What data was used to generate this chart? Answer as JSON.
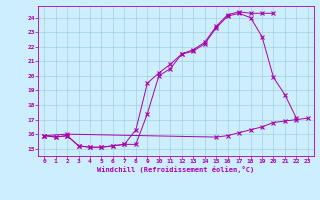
{
  "xlabel": "Windchill (Refroidissement éolien,°C)",
  "bg_color": "#cceeff",
  "line_color": "#aa00aa",
  "grid_color": "#99cccc",
  "xlim": [
    -0.5,
    23.5
  ],
  "ylim": [
    14.5,
    24.8
  ],
  "yticks": [
    15,
    16,
    17,
    18,
    19,
    20,
    21,
    22,
    23,
    24
  ],
  "xticks": [
    0,
    1,
    2,
    3,
    4,
    5,
    6,
    7,
    8,
    9,
    10,
    11,
    12,
    13,
    14,
    15,
    16,
    17,
    18,
    19,
    20,
    21,
    22,
    23
  ],
  "line1_x": [
    0,
    1,
    2,
    3,
    4,
    5,
    6,
    7,
    8,
    9,
    10,
    11,
    12,
    13,
    14,
    15,
    16,
    17,
    18,
    19,
    20,
    21,
    22
  ],
  "line1_y": [
    15.9,
    15.8,
    15.9,
    15.2,
    15.1,
    15.1,
    15.2,
    15.3,
    15.3,
    17.4,
    20.0,
    20.5,
    21.5,
    21.7,
    22.2,
    23.3,
    24.1,
    24.3,
    24.0,
    22.7,
    19.9,
    18.7,
    17.1
  ],
  "line2_x": [
    0,
    1,
    2,
    3,
    4,
    5,
    6,
    7,
    8,
    9,
    10,
    11,
    12,
    13,
    14,
    15,
    16,
    17,
    18,
    19,
    20
  ],
  "line2_y": [
    15.9,
    15.8,
    15.9,
    15.2,
    15.1,
    15.1,
    15.2,
    15.3,
    16.3,
    19.5,
    20.2,
    20.8,
    21.5,
    21.8,
    22.3,
    23.4,
    24.2,
    24.4,
    24.3,
    24.3,
    24.3
  ],
  "line3_x": [
    0,
    2,
    15,
    16,
    17,
    18,
    19,
    20,
    21,
    22,
    23
  ],
  "line3_y": [
    15.9,
    16.0,
    15.8,
    15.9,
    16.1,
    16.3,
    16.5,
    16.8,
    16.9,
    17.0,
    17.1
  ]
}
